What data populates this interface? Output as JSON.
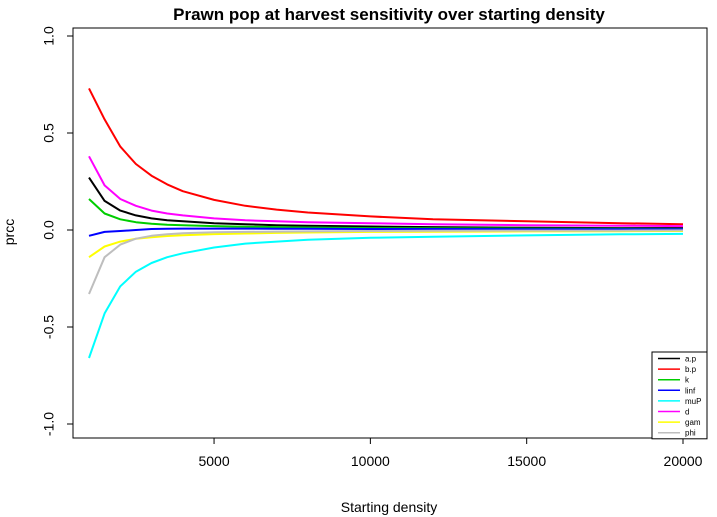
{
  "chart_data": {
    "type": "line",
    "title": "Prawn pop at harvest sensitivity over starting density",
    "xlabel": "Starting density",
    "ylabel": "prcc",
    "xlim": [
      1000,
      20000
    ],
    "ylim": [
      -1.0,
      1.0
    ],
    "x_ticks": [
      5000,
      10000,
      15000,
      20000
    ],
    "x_tick_labels": [
      "5000",
      "10000",
      "15000",
      "20000"
    ],
    "y_ticks": [
      -1.0,
      -0.5,
      0.0,
      0.5,
      1.0
    ],
    "y_tick_labels": [
      "-1.0",
      "-0.5",
      "0.0",
      "0.5",
      "1.0"
    ],
    "grid": false,
    "legend_position": "bottom-right",
    "x": [
      1000,
      1500,
      2000,
      2500,
      3000,
      3500,
      4000,
      5000,
      6000,
      7000,
      8000,
      10000,
      12000,
      15000,
      18000,
      20000
    ],
    "series": [
      {
        "name": "a.p",
        "color": "#000000",
        "values": [
          0.27,
          0.15,
          0.1,
          0.075,
          0.06,
          0.05,
          0.045,
          0.035,
          0.03,
          0.025,
          0.022,
          0.018,
          0.015,
          0.012,
          0.01,
          0.01
        ]
      },
      {
        "name": "b.p",
        "color": "#FF0000",
        "values": [
          0.73,
          0.57,
          0.43,
          0.34,
          0.28,
          0.235,
          0.2,
          0.155,
          0.125,
          0.105,
          0.09,
          0.07,
          0.055,
          0.045,
          0.035,
          0.03
        ]
      },
      {
        "name": "k",
        "color": "#00CD00",
        "values": [
          0.16,
          0.085,
          0.055,
          0.04,
          0.032,
          0.027,
          0.024,
          0.02,
          0.017,
          0.015,
          0.013,
          0.01,
          0.009,
          0.007,
          0.006,
          0.005
        ]
      },
      {
        "name": "linf",
        "color": "#0000FF",
        "values": [
          -0.03,
          -0.01,
          -0.005,
          0.0,
          0.005,
          0.006,
          0.007,
          0.007,
          0.007,
          0.006,
          0.006,
          0.005,
          0.005,
          0.004,
          0.004,
          0.004
        ]
      },
      {
        "name": "muP",
        "color": "#00FFFF",
        "values": [
          -0.66,
          -0.43,
          -0.29,
          -0.215,
          -0.17,
          -0.14,
          -0.12,
          -0.09,
          -0.07,
          -0.06,
          -0.05,
          -0.04,
          -0.035,
          -0.028,
          -0.022,
          -0.02
        ]
      },
      {
        "name": "d",
        "color": "#FF00FF",
        "values": [
          0.38,
          0.23,
          0.16,
          0.125,
          0.1,
          0.085,
          0.075,
          0.06,
          0.05,
          0.045,
          0.04,
          0.035,
          0.03,
          0.025,
          0.022,
          0.02
        ]
      },
      {
        "name": "gam",
        "color": "#FFFF00",
        "values": [
          -0.14,
          -0.085,
          -0.06,
          -0.045,
          -0.037,
          -0.031,
          -0.027,
          -0.021,
          -0.018,
          -0.015,
          -0.013,
          -0.01,
          -0.009,
          -0.007,
          -0.006,
          -0.005
        ]
      },
      {
        "name": "phi",
        "color": "#BEBEBE",
        "values": [
          -0.33,
          -0.14,
          -0.075,
          -0.045,
          -0.03,
          -0.022,
          -0.017,
          -0.012,
          -0.01,
          -0.008,
          -0.007,
          -0.005,
          -0.004,
          -0.003,
          -0.003,
          -0.002
        ]
      }
    ]
  }
}
